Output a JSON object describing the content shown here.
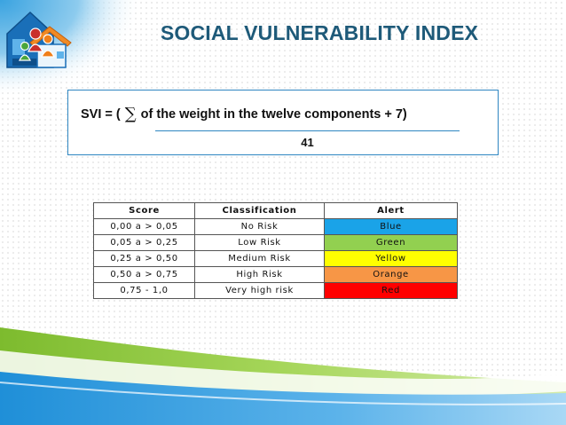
{
  "title": "SOCIAL VULNERABILITY INDEX",
  "formula": {
    "prefix": "SVI = (",
    "sigma": "∑",
    "numerator_text": "of the weight in the twelve components + 7)",
    "denominator": "41"
  },
  "table": {
    "headers": [
      "Score",
      "Classification",
      "Alert"
    ],
    "rows": [
      {
        "score": "0,00 a > 0,05",
        "classification": "No Risk",
        "alert": "Blue",
        "color": "#1aa3e8"
      },
      {
        "score": "0,05 a > 0,25",
        "classification": "Low Risk",
        "alert": "Green",
        "color": "#92d050"
      },
      {
        "score": "0,25 a > 0,50",
        "classification": "Medium Risk",
        "alert": "Yellow",
        "color": "#ffff00"
      },
      {
        "score": "0,50 a > 0,75",
        "classification": "High Risk",
        "alert": "Orange",
        "color": "#f79646"
      },
      {
        "score": "0,75 - 1,0",
        "classification": "Very high risk",
        "alert": "Red",
        "color": "#ff0000"
      }
    ]
  },
  "colors": {
    "title": "#1e5a79",
    "accent_blue": "#2e86c1",
    "swoosh_green": "#8cc63f",
    "swoosh_blue": "#1f8fd8"
  }
}
